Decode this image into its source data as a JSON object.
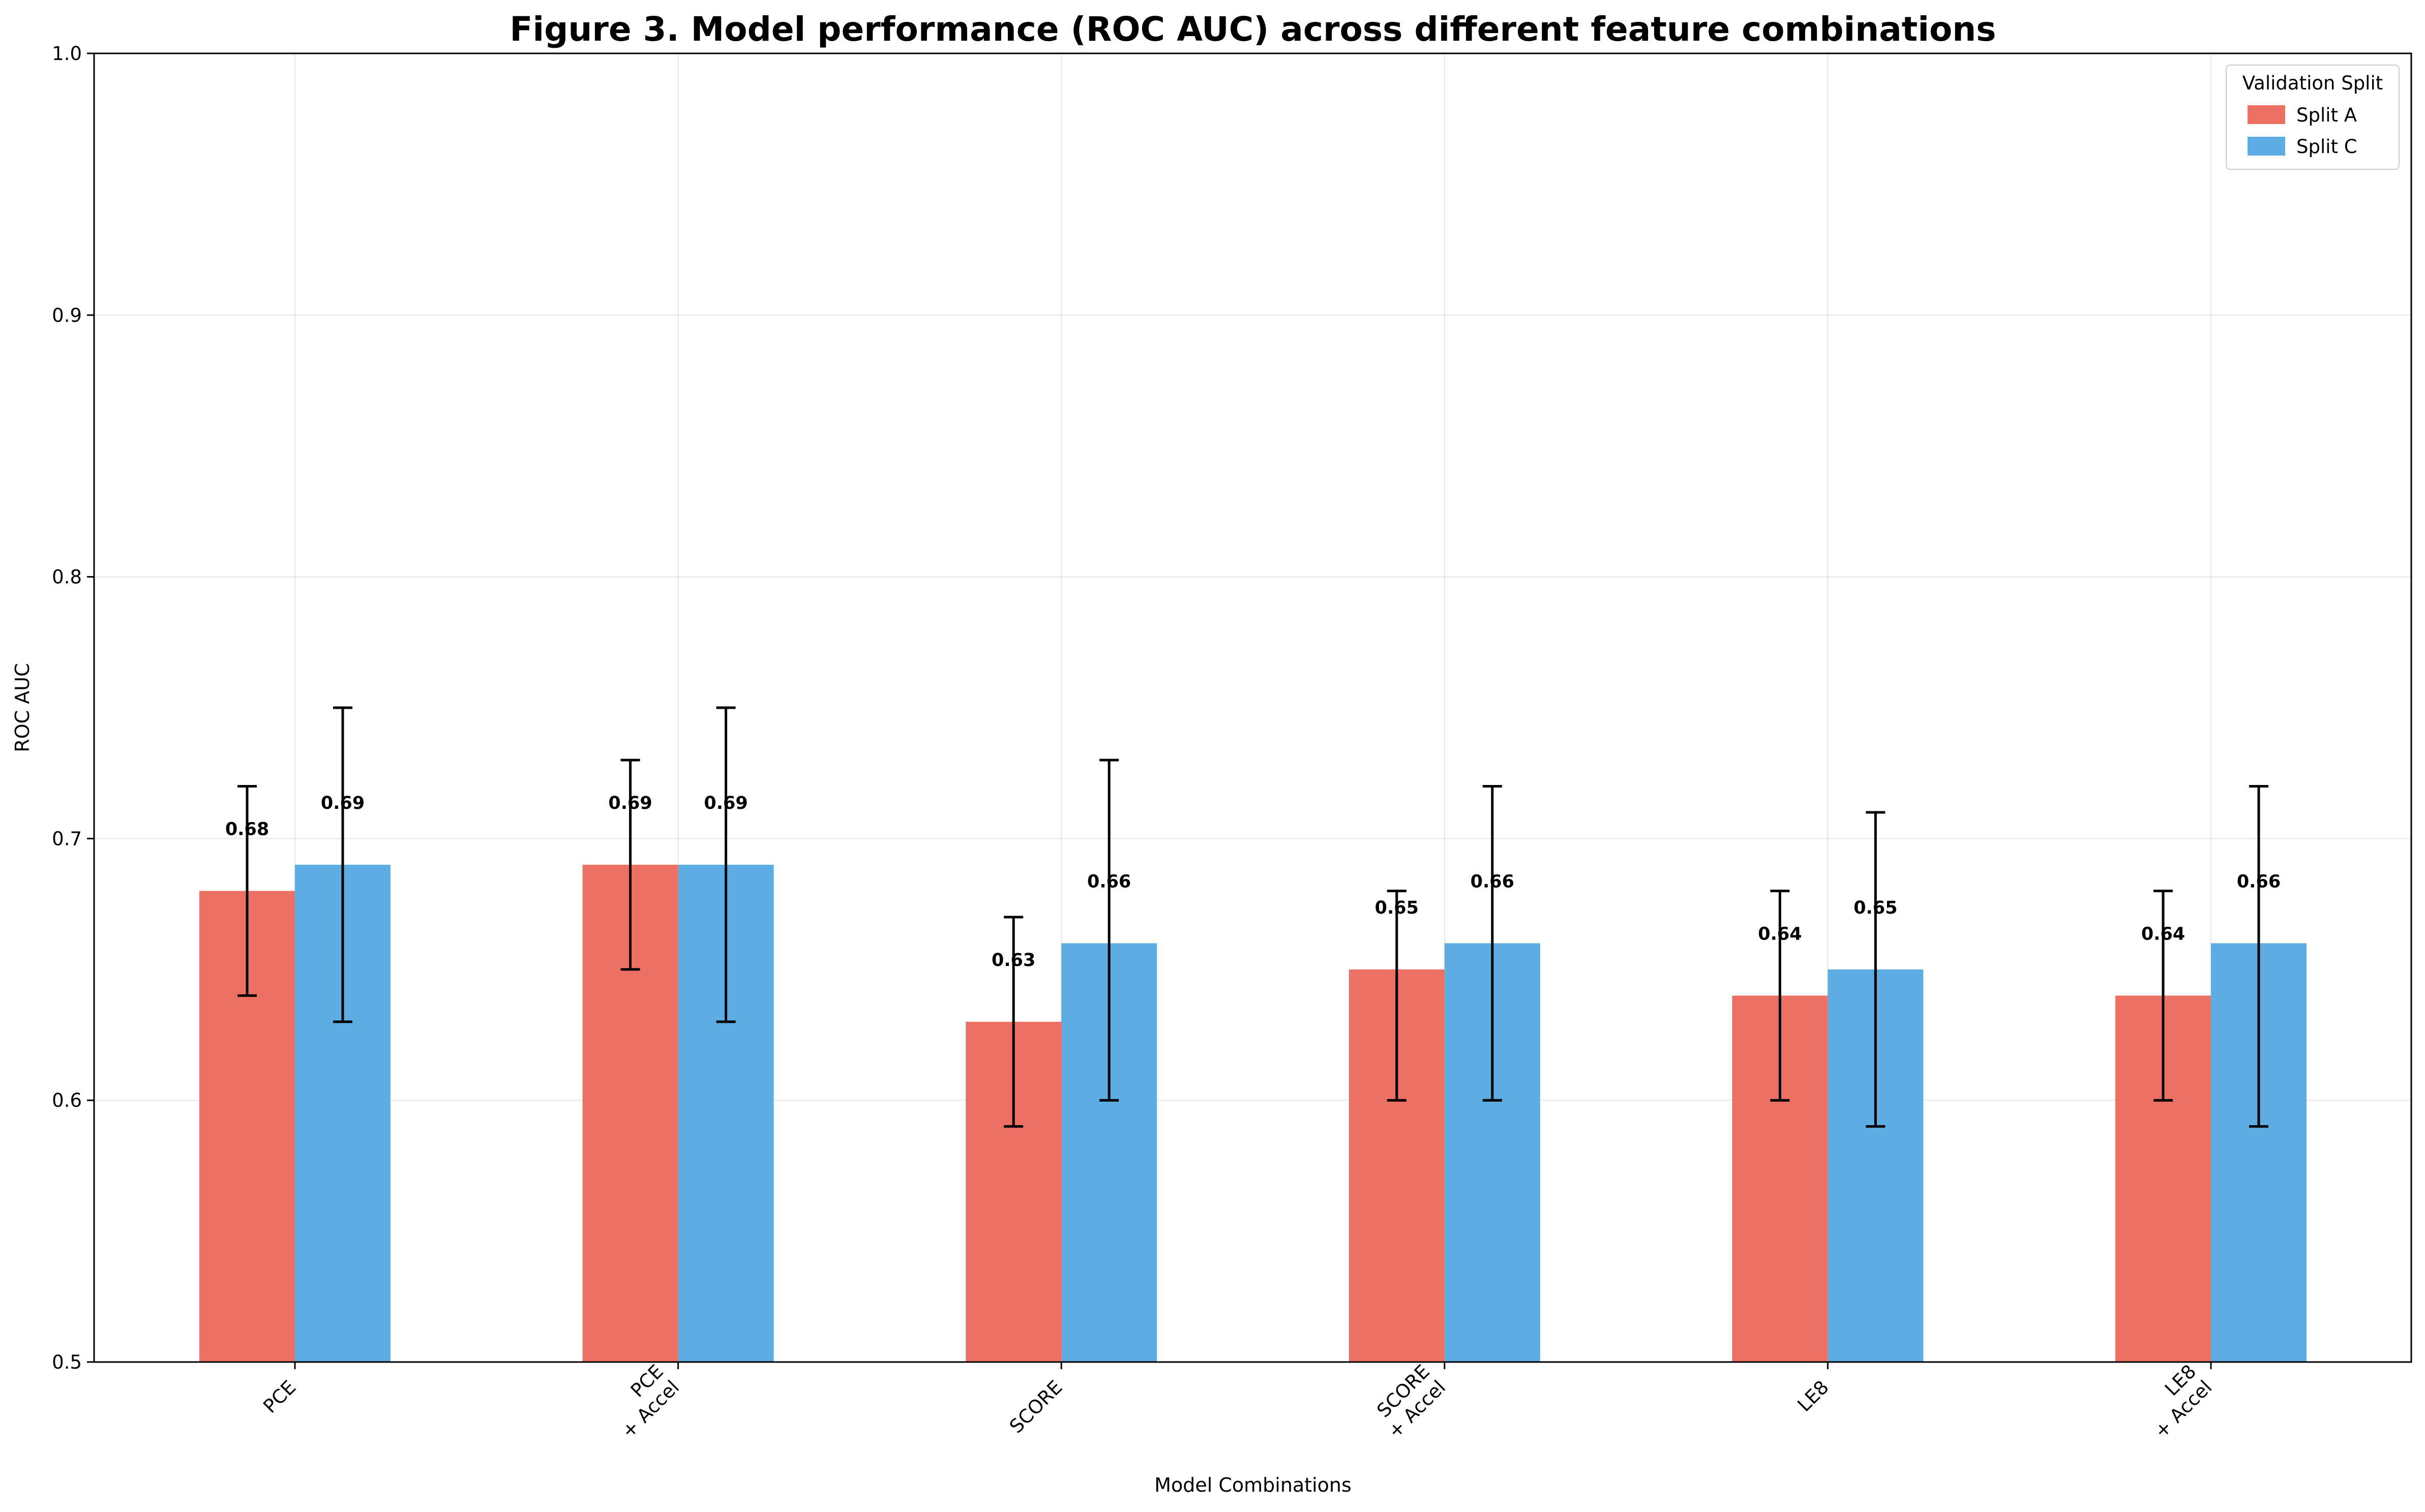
{
  "chart_data": {
    "type": "bar",
    "title": "Figure 3. Model performance (ROC AUC) across different feature combinations",
    "xlabel": "Model Combinations",
    "ylabel": "ROC AUC",
    "ylim": [
      0.5,
      1.0
    ],
    "yticks": [
      "0.5",
      "0.6",
      "0.7",
      "0.8",
      "0.9",
      "1.0"
    ],
    "categories": [
      [
        "PCE"
      ],
      [
        "PCE",
        "+ Accel"
      ],
      [
        "SCORE"
      ],
      [
        "SCORE",
        "+ Accel"
      ],
      [
        "LE8"
      ],
      [
        "LE8",
        "+ Accel"
      ]
    ],
    "series": [
      {
        "name": "Split A",
        "color": "#ec7063",
        "values": [
          0.68,
          0.69,
          0.63,
          0.65,
          0.64,
          0.64
        ],
        "err_low": [
          0.64,
          0.65,
          0.59,
          0.6,
          0.6,
          0.6
        ],
        "err_high": [
          0.72,
          0.73,
          0.67,
          0.68,
          0.68,
          0.68
        ],
        "value_labels": [
          "0.68",
          "0.69",
          "0.63",
          "0.65",
          "0.64",
          "0.64"
        ]
      },
      {
        "name": "Split C",
        "color": "#5dade2",
        "values": [
          0.69,
          0.69,
          0.66,
          0.66,
          0.65,
          0.66
        ],
        "err_low": [
          0.63,
          0.63,
          0.6,
          0.6,
          0.59,
          0.59
        ],
        "err_high": [
          0.75,
          0.75,
          0.73,
          0.72,
          0.71,
          0.72
        ],
        "value_labels": [
          "0.69",
          "0.69",
          "0.66",
          "0.66",
          "0.65",
          "0.66"
        ]
      }
    ],
    "legend": {
      "title": "Validation Split",
      "placement": "top-right"
    },
    "grid": true
  }
}
